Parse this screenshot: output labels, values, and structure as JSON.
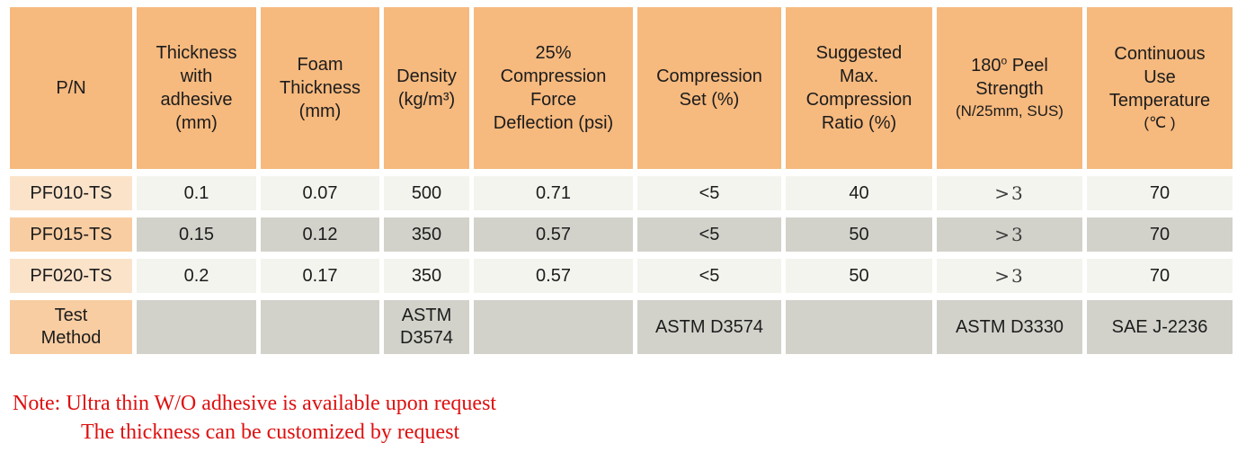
{
  "table": {
    "header": {
      "cells": [
        {
          "name": "pn",
          "lines": [
            "P/N"
          ]
        },
        {
          "name": "thickness-with-adhesive",
          "lines": [
            "Thickness",
            "with",
            "adhesive",
            "(mm)"
          ]
        },
        {
          "name": "foam-thickness",
          "lines": [
            "Foam",
            "Thickness",
            "(mm)"
          ]
        },
        {
          "name": "density",
          "lines": [
            "Density",
            "(kg/m³)"
          ]
        },
        {
          "name": "compression-force-deflection",
          "lines": [
            "25%",
            "Compression",
            "Force",
            "Deflection (psi)"
          ]
        },
        {
          "name": "compression-set",
          "lines": [
            "Compression",
            "Set (%)"
          ]
        },
        {
          "name": "suggested-max-compression-ratio",
          "lines": [
            "Suggested",
            "Max.",
            "Compression",
            "Ratio (%)"
          ]
        },
        {
          "name": "peel-strength",
          "lines": [
            {
              "pre": "180",
              "sup": "o",
              "post": " Peel"
            },
            "Strength",
            {
              "text": "(N/25mm, SUS)",
              "small": true
            }
          ]
        },
        {
          "name": "continuous-use-temperature",
          "lines": [
            "Continuous",
            "Use",
            "Temperature",
            {
              "text": "(℃ )",
              "small": true
            }
          ]
        }
      ]
    },
    "rows": [
      {
        "pn": "PF010-TS",
        "shade": "light",
        "values": [
          "0.1",
          "0.07",
          "500",
          "0.71",
          "<5",
          "40",
          ">3",
          "70"
        ]
      },
      {
        "pn": "PF015-TS",
        "shade": "dark",
        "values": [
          "0.15",
          "0.12",
          "350",
          "0.57",
          "<5",
          "50",
          ">3",
          "70"
        ]
      },
      {
        "pn": "PF020-TS",
        "shade": "light",
        "values": [
          "0.2",
          "0.17",
          "350",
          "0.57",
          "<5",
          "50",
          ">3",
          "70"
        ]
      }
    ],
    "test_method_row": {
      "label": "Test\nMethod",
      "values": [
        "",
        "",
        "ASTM\nD3574",
        "",
        "ASTM D3574",
        "",
        "ASTM D3330",
        "SAE J-2236"
      ]
    }
  },
  "notes": {
    "line1": "Note: Ultra thin W/O adhesive is available upon request",
    "line2": "The thickness can be customized by request"
  },
  "colors": {
    "header_bg": "#f6b97e",
    "pn_light_bg": "#fbe3ca",
    "pn_dark_bg": "#f8cda2",
    "cell_light_bg": "#f4f4ef",
    "cell_dark_bg": "#d2d2cb",
    "note_red": "#de1010"
  }
}
